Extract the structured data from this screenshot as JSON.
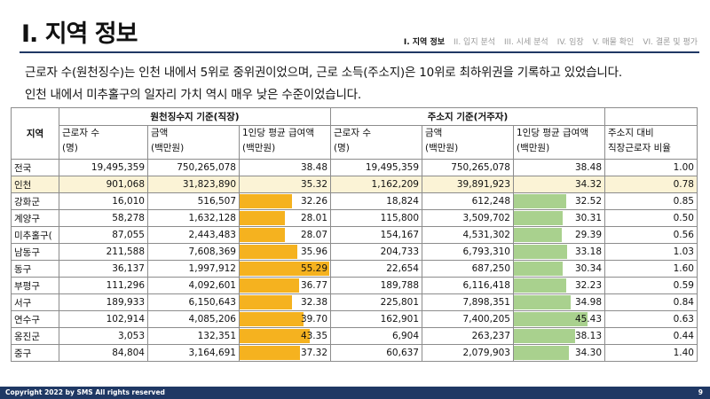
{
  "title": "I. 지역 정보",
  "nav": [
    "I. 지역 정보",
    "II. 입지 분석",
    "III. 시세 분석",
    "IV. 임장",
    "V. 매물 확인",
    "VI. 결론 및 평가"
  ],
  "summary": [
    "근로자 수(원천징수)는 인천 내에서 5위로 중위권이었으며, 근로 소득(주소지)은 10위로 최하위권을 기록하고 있었습니다.",
    "인천 내에서 미추홀구의 일자리 가치 역시 매우 낮은 수준이었습니다."
  ],
  "table": {
    "header": {
      "region": "지역",
      "group_withholding": "원천징수지 기준(직장)",
      "group_address": "주소지 기준(거주자)",
      "ratio_top": "주소지 대비",
      "ratio_bottom": "직장근로자 비율",
      "workers_top": "근로자 수",
      "workers_unit": "(명)",
      "amount_top": "금액",
      "amount_unit": "(백만원)",
      "avg_top": "1인당 평균 급여액",
      "avg_unit": "(백만원)"
    },
    "rows": [
      {
        "name": "전국",
        "w_workers": "19,495,359",
        "w_amount": "750,265,078",
        "w_avg": 38.48,
        "a_workers": "19,495,359",
        "a_amount": "750,265,078",
        "a_avg": 38.48,
        "ratio": "1.00",
        "bars": false,
        "highlight": false
      },
      {
        "name": "인천",
        "w_workers": "901,068",
        "w_amount": "31,823,890",
        "w_avg": 35.32,
        "a_workers": "1,162,209",
        "a_amount": "39,891,923",
        "a_avg": 34.32,
        "ratio": "0.78",
        "bars": false,
        "highlight": true
      },
      {
        "name": "강화군",
        "w_workers": "16,010",
        "w_amount": "516,507",
        "w_avg": 32.26,
        "a_workers": "18,824",
        "a_amount": "612,248",
        "a_avg": 32.52,
        "ratio": "0.85",
        "bars": true,
        "highlight": false
      },
      {
        "name": "계양구",
        "w_workers": "58,278",
        "w_amount": "1,632,128",
        "w_avg": 28.01,
        "a_workers": "115,800",
        "a_amount": "3,509,702",
        "a_avg": 30.31,
        "ratio": "0.50",
        "bars": true,
        "highlight": false
      },
      {
        "name": "미추홀구(",
        "w_workers": "87,055",
        "w_amount": "2,443,483",
        "w_avg": 28.07,
        "a_workers": "154,167",
        "a_amount": "4,531,302",
        "a_avg": 29.39,
        "ratio": "0.56",
        "bars": true,
        "highlight": false
      },
      {
        "name": "남동구",
        "w_workers": "211,588",
        "w_amount": "7,608,369",
        "w_avg": 35.96,
        "a_workers": "204,733",
        "a_amount": "6,793,310",
        "a_avg": 33.18,
        "ratio": "1.03",
        "bars": true,
        "highlight": false
      },
      {
        "name": "동구",
        "w_workers": "36,137",
        "w_amount": "1,997,912",
        "w_avg": 55.29,
        "a_workers": "22,654",
        "a_amount": "687,250",
        "a_avg": 30.34,
        "ratio": "1.60",
        "bars": true,
        "highlight": false
      },
      {
        "name": "부평구",
        "w_workers": "111,296",
        "w_amount": "4,092,601",
        "w_avg": 36.77,
        "a_workers": "189,788",
        "a_amount": "6,116,418",
        "a_avg": 32.23,
        "ratio": "0.59",
        "bars": true,
        "highlight": false
      },
      {
        "name": "서구",
        "w_workers": "189,933",
        "w_amount": "6,150,643",
        "w_avg": 32.38,
        "a_workers": "225,801",
        "a_amount": "7,898,351",
        "a_avg": 34.98,
        "ratio": "0.84",
        "bars": true,
        "highlight": false
      },
      {
        "name": "연수구",
        "w_workers": "102,914",
        "w_amount": "4,085,206",
        "w_avg": 39.7,
        "a_workers": "162,901",
        "a_amount": "7,400,205",
        "a_avg": 45.43,
        "ratio": "0.63",
        "bars": true,
        "highlight": false
      },
      {
        "name": "옹진군",
        "w_workers": "3,053",
        "w_amount": "132,351",
        "w_avg": 43.35,
        "a_workers": "6,904",
        "a_amount": "263,237",
        "a_avg": 38.13,
        "ratio": "0.44",
        "bars": true,
        "highlight": false
      },
      {
        "name": "중구",
        "w_workers": "84,804",
        "w_amount": "3,164,691",
        "w_avg": 37.32,
        "a_workers": "60,637",
        "a_amount": "2,079,903",
        "a_avg": 34.3,
        "ratio": "1.40",
        "bars": true,
        "highlight": false
      }
    ]
  },
  "bar_colors": {
    "withholding": "#f5b21f",
    "address": "#a9d18e",
    "highlight_row": "#fbf3d6",
    "accent": "#1f3864"
  },
  "footer": {
    "copyright": "Copyright 2022 by SMS All rights reserved",
    "page": "9"
  }
}
